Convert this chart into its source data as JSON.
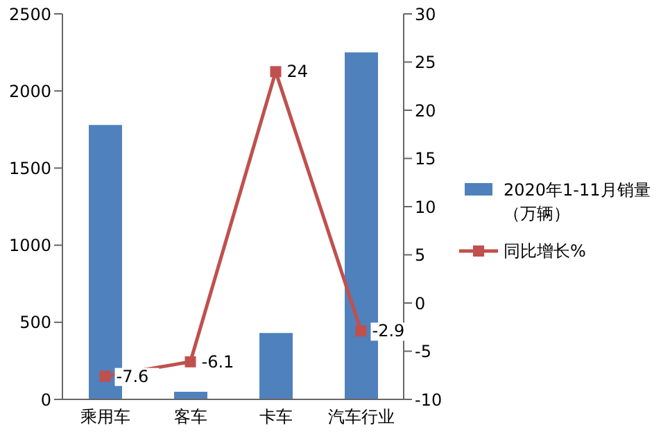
{
  "chart_data": {
    "type": "bar",
    "categories": [
      "乘用车",
      "客车",
      "卡车",
      "汽车行业"
    ],
    "series": [
      {
        "name": "2020年1-11月销量（万辆）",
        "color": "#4f81bd",
        "values": [
          1780,
          50,
          430,
          2250
        ]
      },
      {
        "name": "同比增长%",
        "type": "line",
        "axis": "y2",
        "color": "#c0504d",
        "values": [
          -7.6,
          -6.1,
          24,
          -2.9
        ],
        "value_labels": [
          "-7.6",
          "-6.1",
          "24",
          "-2.9"
        ],
        "marker": "square",
        "line_style": "solid"
      }
    ],
    "ylim": [
      0,
      2500
    ],
    "yticks": [
      0,
      500,
      1000,
      1500,
      2000,
      2500
    ],
    "y2lim": [
      -10,
      30
    ],
    "y2ticks": [
      -10,
      -5,
      0,
      5,
      10,
      15,
      20,
      25,
      30
    ],
    "legend": "right"
  }
}
